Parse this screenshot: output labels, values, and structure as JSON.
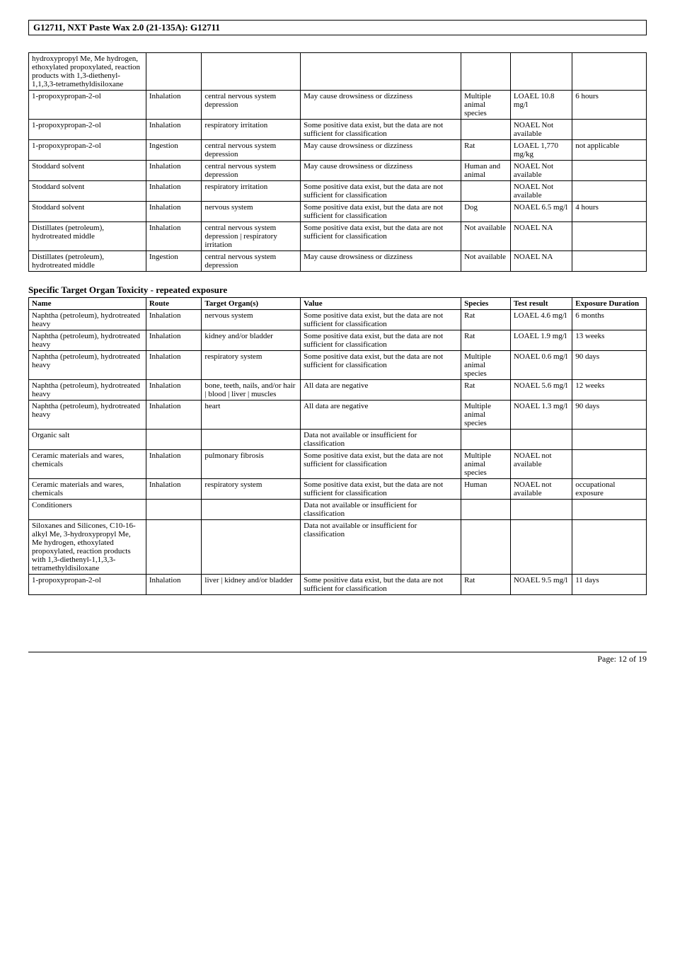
{
  "doc_title": "G12711, NXT Paste Wax 2.0 (21-135A): G12711",
  "section2_heading": "Specific Target Organ Toxicity - repeated exposure",
  "footer_text": "Page: 12 of  19",
  "table1": {
    "rows": [
      {
        "name": "hydroxypropyl Me, Me hydrogen, ethoxylated propoxylated, reaction products with 1,3-diethenyl-1,1,3,3-tetramethyldisiloxane",
        "route": "",
        "organ": "",
        "value": "",
        "species": "",
        "result": "",
        "exposure": ""
      },
      {
        "name": "1-propoxypropan-2-ol",
        "route": "Inhalation",
        "organ": "central nervous system depression",
        "value": "May cause drowsiness or dizziness",
        "species": "Multiple animal species",
        "result": "LOAEL 10.8 mg/l",
        "exposure": "6 hours"
      },
      {
        "name": "1-propoxypropan-2-ol",
        "route": "Inhalation",
        "organ": "respiratory irritation",
        "value": "Some positive data exist, but the data are not sufficient for classification",
        "species": "",
        "result": "NOAEL Not available",
        "exposure": ""
      },
      {
        "name": "1-propoxypropan-2-ol",
        "route": "Ingestion",
        "organ": "central nervous system depression",
        "value": "May cause drowsiness or dizziness",
        "species": "Rat",
        "result": "LOAEL 1,770 mg/kg",
        "exposure": "not applicable"
      },
      {
        "name": "Stoddard solvent",
        "route": "Inhalation",
        "organ": "central nervous system depression",
        "value": "May cause drowsiness or dizziness",
        "species": "Human and animal",
        "result": "NOAEL Not available",
        "exposure": ""
      },
      {
        "name": "Stoddard solvent",
        "route": "Inhalation",
        "organ": "respiratory irritation",
        "value": "Some positive data exist, but the data are not sufficient for classification",
        "species": "",
        "result": "NOAEL Not available",
        "exposure": ""
      },
      {
        "name": "Stoddard solvent",
        "route": "Inhalation",
        "organ": "nervous system",
        "value": "Some positive data exist, but the data are not sufficient for classification",
        "species": "Dog",
        "result": "NOAEL 6.5 mg/l",
        "exposure": "4 hours"
      },
      {
        "name": "Distillates (petroleum), hydrotreated middle",
        "route": "Inhalation",
        "organ": "central nervous system depression | respiratory irritation",
        "value": "Some positive data exist, but the data are not sufficient for classification",
        "species": "Not available",
        "result": "NOAEL NA",
        "exposure": ""
      },
      {
        "name": "Distillates (petroleum), hydrotreated middle",
        "route": "Ingestion",
        "organ": "central nervous system depression",
        "value": "May cause drowsiness or dizziness",
        "species": "Not available",
        "result": "NOAEL NA",
        "exposure": ""
      }
    ]
  },
  "table2": {
    "headers": {
      "name": "Name",
      "route": "Route",
      "organ": "Target Organ(s)",
      "value": "Value",
      "species": "Species",
      "result": "Test result",
      "exposure": "Exposure Duration"
    },
    "rows": [
      {
        "name": "Naphtha (petroleum), hydrotreated heavy",
        "route": "Inhalation",
        "organ": "nervous system",
        "value": "Some positive data exist, but the data are not sufficient for classification",
        "species": "Rat",
        "result": "LOAEL 4.6 mg/l",
        "exposure": "6 months"
      },
      {
        "name": "Naphtha (petroleum), hydrotreated heavy",
        "route": "Inhalation",
        "organ": "kidney and/or bladder",
        "value": "Some positive data exist, but the data are not sufficient for classification",
        "species": "Rat",
        "result": "LOAEL 1.9 mg/l",
        "exposure": "13 weeks"
      },
      {
        "name": "Naphtha (petroleum), hydrotreated heavy",
        "route": "Inhalation",
        "organ": "respiratory system",
        "value": "Some positive data exist, but the data are not sufficient for classification",
        "species": "Multiple animal species",
        "result": "NOAEL 0.6 mg/l",
        "exposure": "90 days"
      },
      {
        "name": "Naphtha (petroleum), hydrotreated heavy",
        "route": "Inhalation",
        "organ": "bone, teeth, nails, and/or hair | blood | liver | muscles",
        "value": "All data are negative",
        "species": "Rat",
        "result": "NOAEL 5.6 mg/l",
        "exposure": "12 weeks"
      },
      {
        "name": "Naphtha (petroleum), hydrotreated heavy",
        "route": "Inhalation",
        "organ": "heart",
        "value": "All data are negative",
        "species": "Multiple animal species",
        "result": "NOAEL 1.3 mg/l",
        "exposure": "90 days"
      },
      {
        "name": "Organic salt",
        "route": "",
        "organ": "",
        "value": "Data not available or insufficient for classification",
        "species": "",
        "result": "",
        "exposure": ""
      },
      {
        "name": "Ceramic materials and wares, chemicals",
        "route": "Inhalation",
        "organ": "pulmonary fibrosis",
        "value": "Some positive data exist, but the data are not sufficient for classification",
        "species": "Multiple animal species",
        "result": "NOAEL not available",
        "exposure": ""
      },
      {
        "name": "Ceramic materials and wares, chemicals",
        "route": "Inhalation",
        "organ": "respiratory system",
        "value": "Some positive data exist, but the data are not sufficient for classification",
        "species": "Human",
        "result": "NOAEL not available",
        "exposure": "occupational exposure"
      },
      {
        "name": "Conditioners",
        "route": "",
        "organ": "",
        "value": "Data not available or insufficient for classification",
        "species": "",
        "result": "",
        "exposure": ""
      },
      {
        "name": "Siloxanes and Silicones, C10-16-alkyl Me, 3-hydroxypropyl Me, Me hydrogen, ethoxylated propoxylated, reaction products with 1,3-diethenyl-1,1,3,3-tetramethyldisiloxane",
        "route": "",
        "organ": "",
        "value": "Data not available or insufficient for classification",
        "species": "",
        "result": "",
        "exposure": ""
      },
      {
        "name": "1-propoxypropan-2-ol",
        "route": "Inhalation",
        "organ": "liver | kidney and/or bladder",
        "value": "Some positive data exist, but the data are not sufficient for classification",
        "species": "Rat",
        "result": "NOAEL 9.5 mg/l",
        "exposure": "11 days"
      }
    ]
  }
}
